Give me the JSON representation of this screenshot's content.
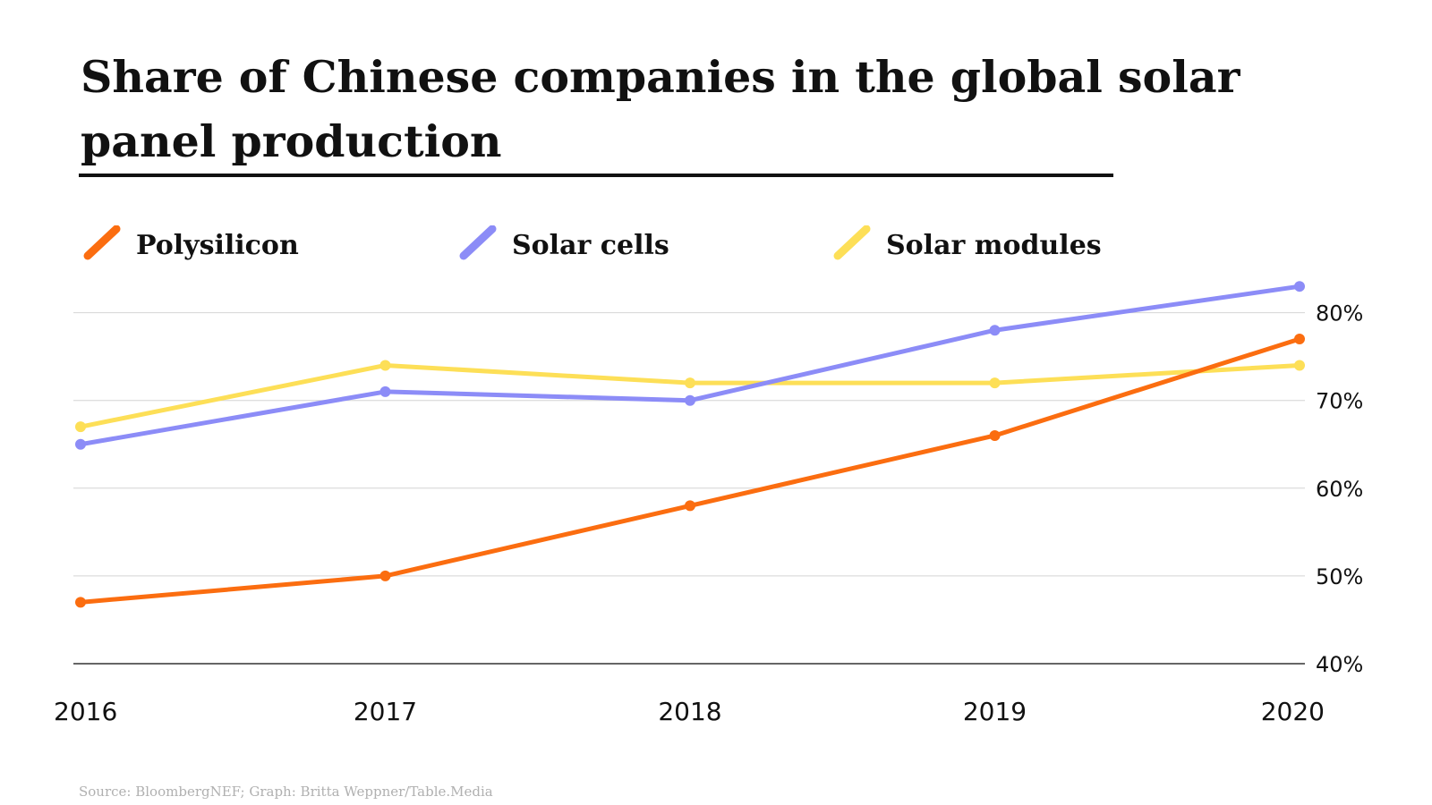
{
  "title": "Share of Chinese companies in the global solar panel production",
  "source": "Source: BloombergNEF; Graph: Britta Weppner/Table.Media",
  "chart_data": {
    "type": "line",
    "x": [
      "2016",
      "2017",
      "2018",
      "2019",
      "2020"
    ],
    "y_ticks": [
      {
        "value": 80,
        "label": "80%"
      },
      {
        "value": 70,
        "label": "70%"
      },
      {
        "value": 60,
        "label": "60%"
      },
      {
        "value": 50,
        "label": "50%"
      },
      {
        "value": 40,
        "label": "40%"
      }
    ],
    "ylim": [
      40,
      82
    ],
    "grid": true,
    "legend_position": "top",
    "series": [
      {
        "name": "Polysilicon",
        "color": "#fb6d10",
        "values": [
          47,
          50,
          58,
          66,
          77
        ]
      },
      {
        "name": "Solar cells",
        "color": "#8c8cf7",
        "values": [
          65,
          71,
          70,
          78,
          83
        ]
      },
      {
        "name": "Solar modules",
        "color": "#fddf57",
        "values": [
          67,
          74,
          72,
          72,
          74
        ]
      }
    ]
  }
}
